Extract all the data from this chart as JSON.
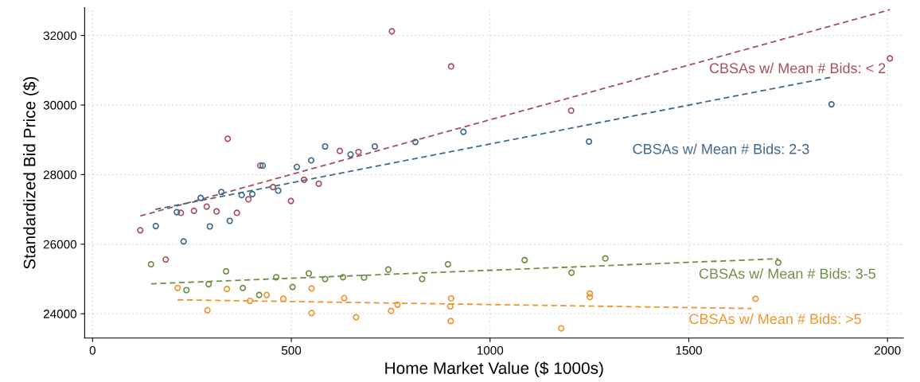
{
  "chart_data": {
    "type": "scatter",
    "xlabel": "Home Market Value ($ 1000s)",
    "ylabel": "Standardized Bid Price ($)",
    "xlim": [
      -20,
      2040
    ],
    "ylim": [
      23300,
      32800
    ],
    "xticks": [
      0,
      500,
      1000,
      1500,
      2000
    ],
    "yticks": [
      24000,
      26000,
      28000,
      30000,
      32000
    ],
    "grid": true,
    "marker": "circle",
    "series": [
      {
        "color": "#a8505a",
        "x": [
          120,
          184,
          222,
          255,
          287,
          312,
          340,
          363,
          392,
          422,
          454,
          499,
          532,
          569,
          622,
          669,
          753,
          902,
          1204,
          2006
        ],
        "values": [
          26400,
          25560,
          26900,
          26960,
          27080,
          26940,
          29030,
          26900,
          27290,
          28260,
          27640,
          27240,
          27850,
          27740,
          28680,
          28650,
          32120,
          31110,
          29840,
          31340
        ]
      },
      {
        "color": "#3e6a91",
        "x": [
          159,
          212,
          229,
          272,
          295,
          324,
          345,
          375,
          402,
          428,
          467,
          514,
          550,
          585,
          649,
          710,
          812,
          933,
          1249,
          1859
        ],
        "values": [
          26520,
          26920,
          26080,
          27330,
          26510,
          27500,
          26670,
          27410,
          27440,
          28260,
          27540,
          28220,
          28410,
          28810,
          28580,
          28810,
          28940,
          29230,
          28950,
          30020
        ]
      },
      {
        "color": "#6f8f45",
        "x": [
          147,
          236,
          292,
          336,
          378,
          419,
          462,
          503,
          544,
          585,
          630,
          683,
          744,
          829,
          894,
          1087,
          1205,
          1290,
          1725
        ],
        "values": [
          25420,
          24680,
          24850,
          25220,
          24740,
          24540,
          25050,
          24770,
          25160,
          25000,
          25050,
          25040,
          25270,
          25000,
          25420,
          25540,
          25180,
          25590,
          25470
        ]
      },
      {
        "color": "#f0962c",
        "x": [
          214,
          289,
          338,
          396,
          438,
          480,
          551,
          551,
          633,
          663,
          751,
          767,
          902,
          900,
          901,
          1179,
          1251,
          1251,
          1668
        ],
        "values": [
          24740,
          24100,
          24710,
          24370,
          24540,
          24430,
          24730,
          24020,
          24450,
          23900,
          24080,
          24260,
          24440,
          24210,
          23790,
          23580,
          24580,
          24480,
          24430
        ]
      },
      {
        "type": "line",
        "name": "CBSAs w/ Mean # Bids: < 2",
        "color": "#a8505a",
        "marker": "none",
        "line_style": "dashed",
        "x": [
          120,
          2006
        ],
        "values": [
          26810,
          32740
        ]
      },
      {
        "type": "line",
        "name": "CBSAs w/ Mean # Bids: 2-3",
        "color": "#3e6a91",
        "marker": "none",
        "line_style": "dashed",
        "x": [
          158,
          1859
        ],
        "values": [
          27000,
          30800
        ]
      },
      {
        "type": "line",
        "name": "CBSAs w/ Mean # Bids: 3-5",
        "color": "#6f8f45",
        "marker": "none",
        "line_style": "dashed",
        "x": [
          147,
          1725
        ],
        "values": [
          24860,
          25580
        ]
      },
      {
        "type": "line",
        "name": "CBSAs w/ Mean # Bids: >5",
        "color": "#f0962c",
        "marker": "none",
        "line_style": "dashed",
        "x": [
          214,
          1658
        ],
        "values": [
          24400,
          24150
        ]
      }
    ]
  }
}
